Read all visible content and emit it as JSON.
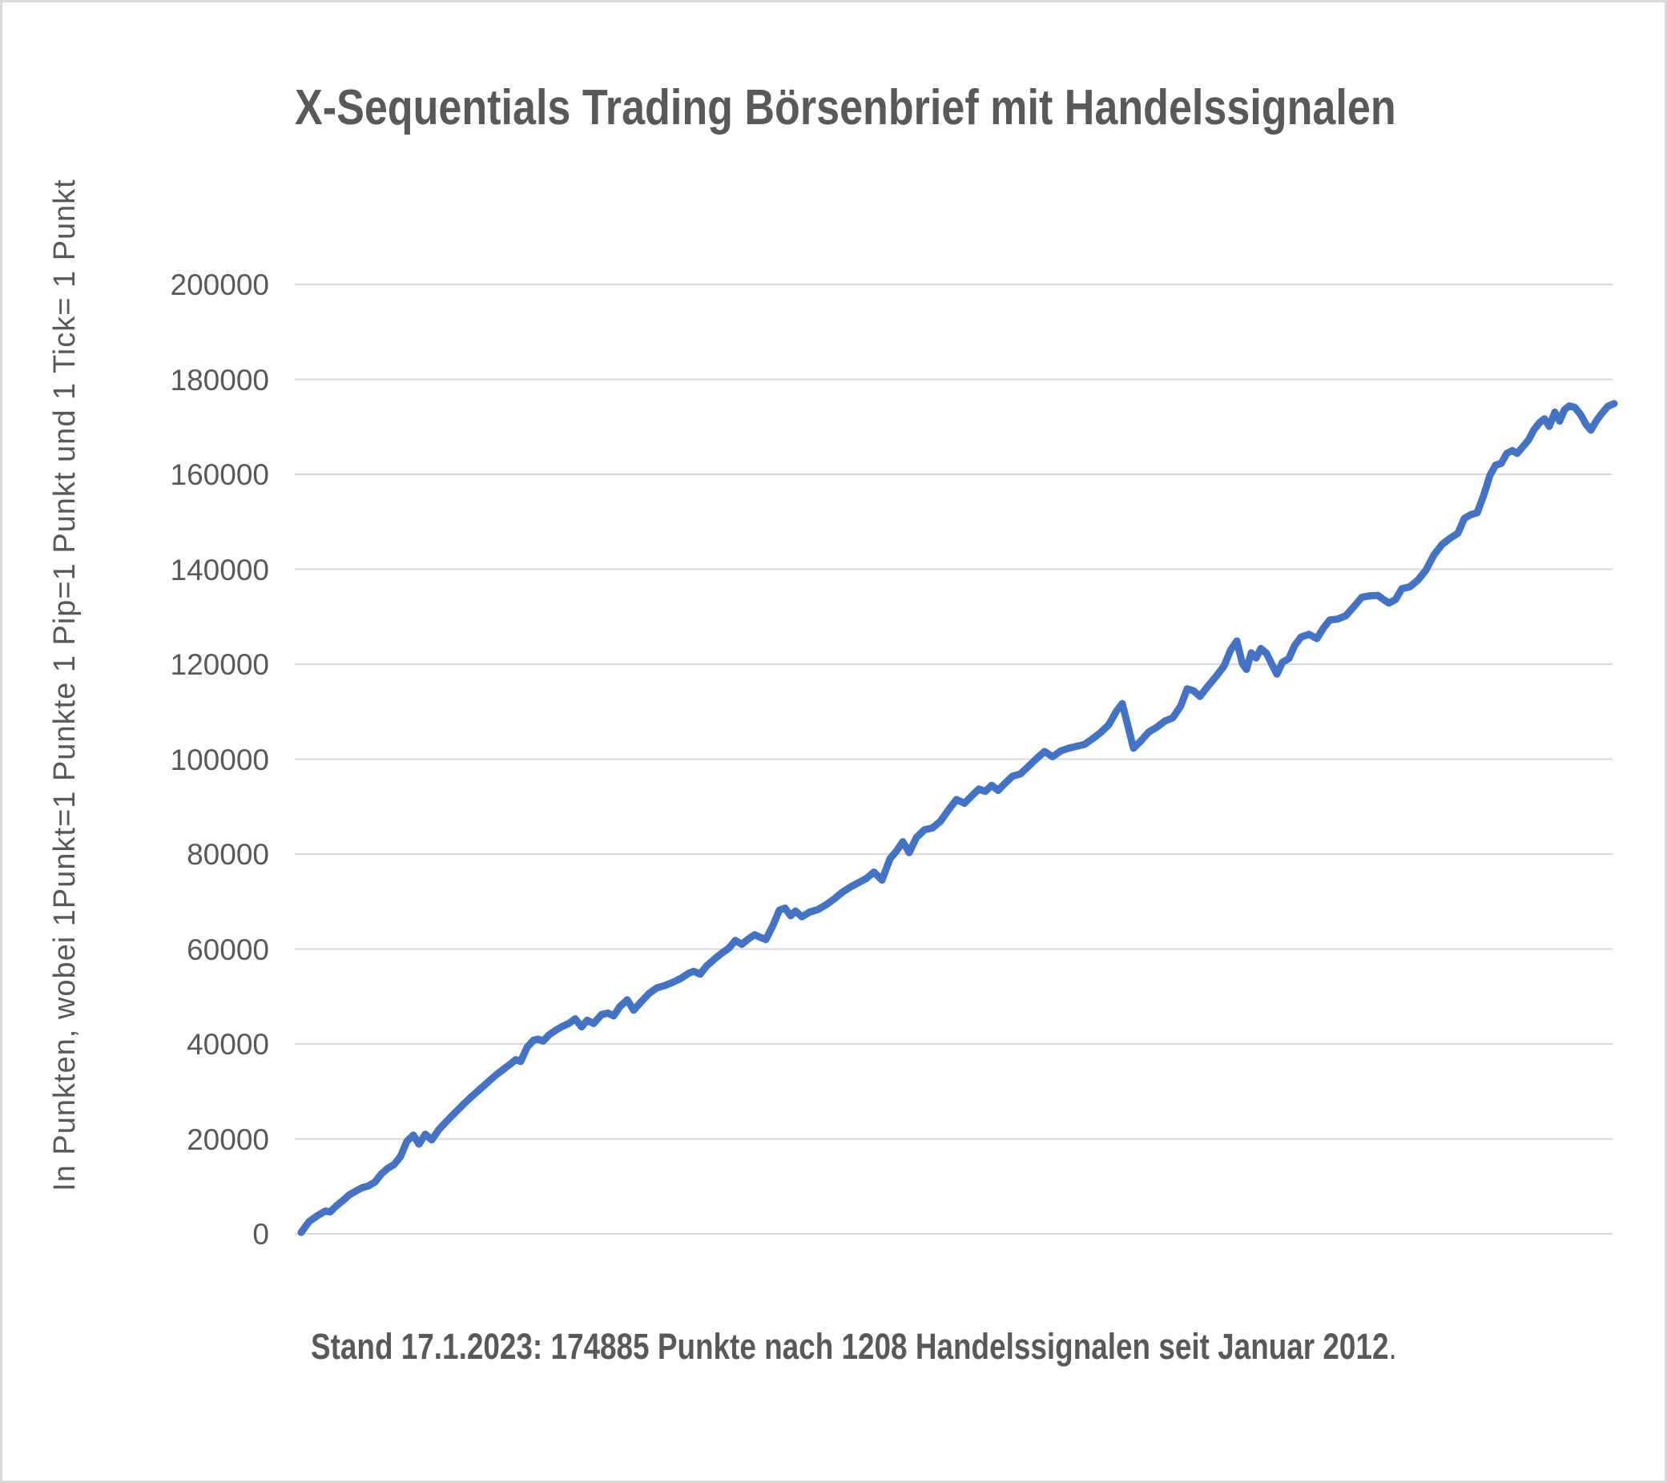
{
  "title": "X-Sequentials Trading Börsenbrief mit Handelssignalen",
  "y_axis": {
    "label": "In Punkten, wobei 1Punkt=1 Punkte 1 Pip=1 Punkt und 1 Tick= 1 Punkt",
    "tick_values": [
      0,
      20000,
      40000,
      60000,
      80000,
      100000,
      120000,
      140000,
      160000,
      180000,
      200000
    ]
  },
  "caption": {
    "text": "Stand 17.1.2023: 174885 Punkte nach 1208 Handelssignalen seit Januar 2012",
    "period": "."
  },
  "colors": {
    "line": "#4472C4",
    "grid": "#D9D9D9",
    "text": "#595959",
    "frame_border": "#DADADA"
  },
  "chart_data": {
    "type": "line",
    "title": "X-Sequentials Trading Börsenbrief mit Handelssignalen",
    "xlabel": "",
    "ylabel": "In Punkten, wobei 1Punkt=1 Punkte 1 Pip=1 Punkt und 1 Tick= 1 Punkt",
    "ylim": [
      0,
      200000
    ],
    "y_tick_step": 20000,
    "grid": "horizontal-only",
    "legend": "none",
    "x_axis_labels_visible": false,
    "period_shown": "Januar 2012 bis 17.1.2023",
    "final_value_punkte": 174885,
    "handelssignale_count": 1208,
    "y_unit": "Punkte",
    "points_x_unit": "pixel column in source image (time axis unlabeled)",
    "points": [
      [
        373,
        300
      ],
      [
        383,
        2600
      ],
      [
        393,
        3800
      ],
      [
        403,
        4800
      ],
      [
        409,
        4600
      ],
      [
        417,
        5900
      ],
      [
        425,
        7000
      ],
      [
        433,
        8200
      ],
      [
        441,
        9000
      ],
      [
        449,
        9700
      ],
      [
        457,
        10100
      ],
      [
        465,
        10900
      ],
      [
        473,
        12600
      ],
      [
        481,
        13800
      ],
      [
        489,
        14600
      ],
      [
        497,
        16300
      ],
      [
        505,
        19500
      ],
      [
        513,
        20800
      ],
      [
        520,
        18900
      ],
      [
        528,
        21000
      ],
      [
        536,
        19800
      ],
      [
        545,
        22000
      ],
      [
        555,
        23800
      ],
      [
        565,
        25500
      ],
      [
        575,
        27200
      ],
      [
        585,
        28800
      ],
      [
        595,
        30300
      ],
      [
        605,
        31800
      ],
      [
        615,
        33300
      ],
      [
        625,
        34600
      ],
      [
        635,
        35900
      ],
      [
        641,
        36700
      ],
      [
        647,
        36300
      ],
      [
        655,
        39300
      ],
      [
        663,
        40800
      ],
      [
        669,
        41000
      ],
      [
        675,
        40600
      ],
      [
        683,
        42000
      ],
      [
        691,
        42900
      ],
      [
        699,
        43700
      ],
      [
        707,
        44300
      ],
      [
        715,
        45300
      ],
      [
        723,
        43600
      ],
      [
        730,
        45000
      ],
      [
        738,
        44300
      ],
      [
        748,
        46200
      ],
      [
        756,
        46500
      ],
      [
        763,
        45900
      ],
      [
        771,
        47900
      ],
      [
        780,
        49300
      ],
      [
        788,
        47100
      ],
      [
        797,
        48800
      ],
      [
        807,
        50600
      ],
      [
        817,
        51800
      ],
      [
        827,
        52300
      ],
      [
        837,
        53000
      ],
      [
        847,
        53800
      ],
      [
        857,
        54900
      ],
      [
        863,
        55300
      ],
      [
        871,
        54700
      ],
      [
        879,
        56400
      ],
      [
        887,
        57600
      ],
      [
        897,
        59000
      ],
      [
        907,
        60200
      ],
      [
        915,
        61800
      ],
      [
        923,
        61000
      ],
      [
        931,
        62100
      ],
      [
        939,
        63000
      ],
      [
        947,
        62400
      ],
      [
        953,
        62000
      ],
      [
        962,
        65000
      ],
      [
        970,
        68200
      ],
      [
        977,
        68600
      ],
      [
        984,
        67000
      ],
      [
        990,
        68000
      ],
      [
        998,
        66800
      ],
      [
        1008,
        67800
      ],
      [
        1018,
        68300
      ],
      [
        1028,
        69300
      ],
      [
        1038,
        70500
      ],
      [
        1048,
        71900
      ],
      [
        1058,
        73000
      ],
      [
        1068,
        73900
      ],
      [
        1078,
        74800
      ],
      [
        1088,
        76200
      ],
      [
        1098,
        74500
      ],
      [
        1108,
        79000
      ],
      [
        1116,
        80600
      ],
      [
        1124,
        82600
      ],
      [
        1132,
        80300
      ],
      [
        1141,
        83500
      ],
      [
        1151,
        85100
      ],
      [
        1161,
        85500
      ],
      [
        1171,
        86900
      ],
      [
        1181,
        89300
      ],
      [
        1191,
        91500
      ],
      [
        1201,
        90700
      ],
      [
        1211,
        92400
      ],
      [
        1219,
        93700
      ],
      [
        1227,
        93200
      ],
      [
        1235,
        94500
      ],
      [
        1243,
        93400
      ],
      [
        1251,
        94800
      ],
      [
        1261,
        96400
      ],
      [
        1271,
        96900
      ],
      [
        1281,
        98500
      ],
      [
        1291,
        100100
      ],
      [
        1301,
        101600
      ],
      [
        1311,
        100500
      ],
      [
        1321,
        101700
      ],
      [
        1331,
        102300
      ],
      [
        1341,
        102700
      ],
      [
        1351,
        103100
      ],
      [
        1361,
        104300
      ],
      [
        1371,
        105600
      ],
      [
        1381,
        107200
      ],
      [
        1391,
        110200
      ],
      [
        1398,
        111700
      ],
      [
        1405,
        107000
      ],
      [
        1412,
        102300
      ],
      [
        1421,
        103800
      ],
      [
        1431,
        105700
      ],
      [
        1441,
        106700
      ],
      [
        1451,
        108000
      ],
      [
        1461,
        108700
      ],
      [
        1471,
        111200
      ],
      [
        1479,
        114800
      ],
      [
        1487,
        114400
      ],
      [
        1495,
        113200
      ],
      [
        1505,
        115400
      ],
      [
        1515,
        117400
      ],
      [
        1525,
        119600
      ],
      [
        1533,
        122900
      ],
      [
        1541,
        124900
      ],
      [
        1548,
        120100
      ],
      [
        1553,
        118900
      ],
      [
        1559,
        122400
      ],
      [
        1565,
        121300
      ],
      [
        1571,
        123300
      ],
      [
        1578,
        122300
      ],
      [
        1585,
        119900
      ],
      [
        1591,
        117900
      ],
      [
        1598,
        120400
      ],
      [
        1606,
        121200
      ],
      [
        1613,
        123900
      ],
      [
        1621,
        125700
      ],
      [
        1631,
        126300
      ],
      [
        1641,
        125400
      ],
      [
        1649,
        127600
      ],
      [
        1657,
        129300
      ],
      [
        1667,
        129500
      ],
      [
        1677,
        130200
      ],
      [
        1687,
        132100
      ],
      [
        1697,
        134100
      ],
      [
        1707,
        134400
      ],
      [
        1717,
        134500
      ],
      [
        1725,
        133500
      ],
      [
        1731,
        132900
      ],
      [
        1739,
        133600
      ],
      [
        1747,
        135900
      ],
      [
        1757,
        136300
      ],
      [
        1767,
        137700
      ],
      [
        1777,
        139800
      ],
      [
        1787,
        143000
      ],
      [
        1797,
        145200
      ],
      [
        1807,
        146500
      ],
      [
        1817,
        147600
      ],
      [
        1825,
        150700
      ],
      [
        1833,
        151500
      ],
      [
        1841,
        151900
      ],
      [
        1849,
        155500
      ],
      [
        1857,
        159800
      ],
      [
        1864,
        161900
      ],
      [
        1871,
        162300
      ],
      [
        1878,
        164400
      ],
      [
        1885,
        165000
      ],
      [
        1891,
        164400
      ],
      [
        1898,
        165800
      ],
      [
        1905,
        167200
      ],
      [
        1912,
        169400
      ],
      [
        1919,
        170900
      ],
      [
        1925,
        171700
      ],
      [
        1931,
        170100
      ],
      [
        1938,
        173100
      ],
      [
        1944,
        171200
      ],
      [
        1950,
        173600
      ],
      [
        1956,
        174400
      ],
      [
        1963,
        174100
      ],
      [
        1970,
        172600
      ],
      [
        1977,
        170500
      ],
      [
        1983,
        169300
      ],
      [
        1990,
        171300
      ],
      [
        1997,
        172900
      ],
      [
        2004,
        174300
      ],
      [
        2012,
        174885
      ]
    ]
  }
}
